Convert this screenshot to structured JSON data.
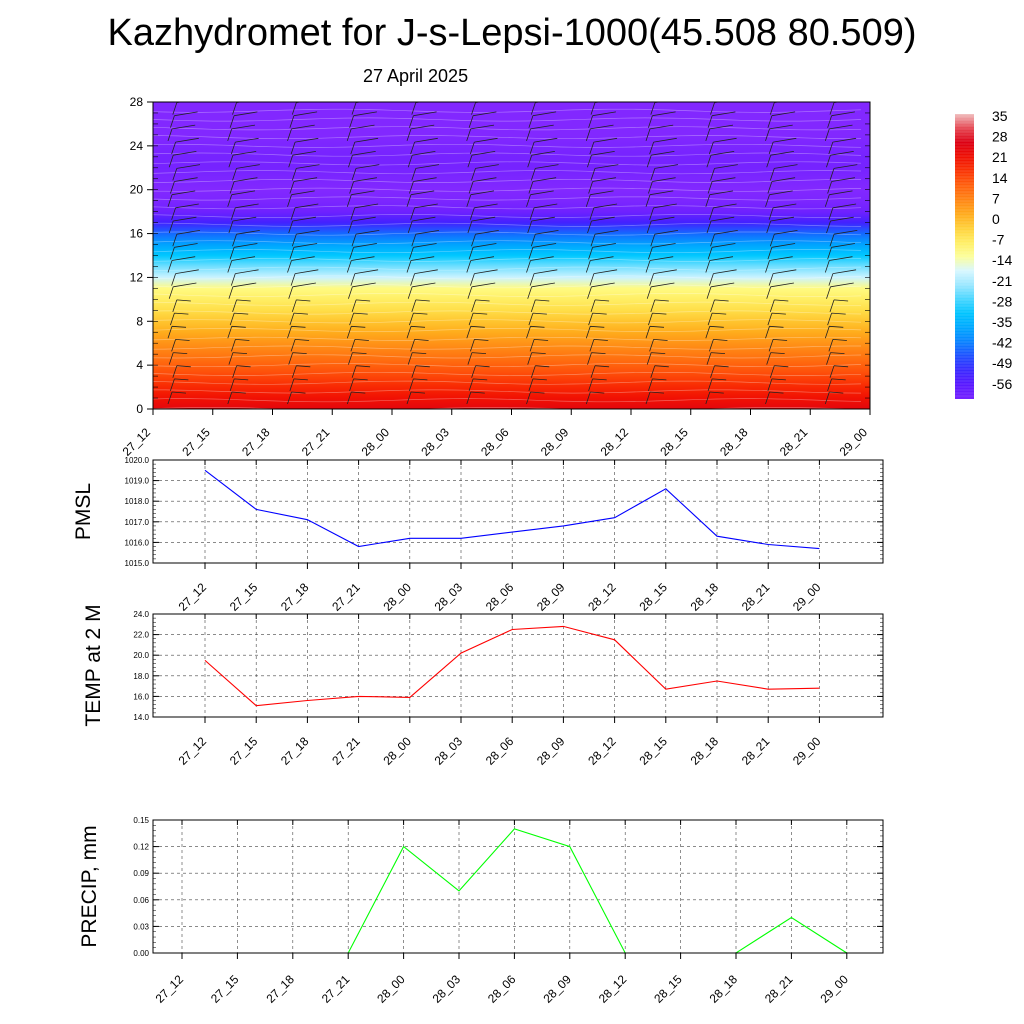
{
  "title": "Kazhydromet for J-s-Lepsi-1000(45.508 80.509)",
  "subtitle": "27 April 2025",
  "time_labels": [
    "27_12",
    "27_15",
    "27_18",
    "27_21",
    "28_00",
    "28_03",
    "28_06",
    "28_09",
    "28_12",
    "28_15",
    "28_18",
    "28_21",
    "29_00"
  ],
  "colorbar": {
    "labels": [
      "35",
      "28",
      "21",
      "14",
      "7",
      "0",
      "-7",
      "-14",
      "-21",
      "-28",
      "-35",
      "-42",
      "-49",
      "-56"
    ]
  },
  "chart_data": [
    {
      "type": "heatmap",
      "yticks": [
        "0",
        "4",
        "8",
        "12",
        "16",
        "20",
        "24",
        "28"
      ],
      "ylim": [
        0,
        28
      ],
      "xcategories": [
        "27_12",
        "27_15",
        "27_18",
        "27_21",
        "28_00",
        "28_03",
        "28_06",
        "28_09",
        "28_12",
        "28_15",
        "28_18",
        "28_21",
        "29_00"
      ],
      "levels": [
        0,
        1,
        2,
        3,
        4,
        5,
        6,
        7,
        8,
        9,
        10,
        11,
        12,
        13,
        14,
        15,
        16,
        17,
        18,
        19,
        20,
        21,
        22,
        23,
        24,
        25,
        26,
        27,
        28
      ],
      "temperature_by_level": [
        24,
        21,
        18,
        15,
        12,
        9,
        6,
        3,
        0,
        -3,
        -6,
        -9,
        -16,
        -22,
        -28,
        -34,
        -40,
        -48,
        -55,
        -57,
        -58,
        -57,
        -56,
        -56,
        -57,
        -58,
        -58,
        -58,
        -58
      ],
      "colorbar_range": [
        -56,
        35
      ]
    },
    {
      "type": "line",
      "ylabel": "PMSL",
      "categories": [
        "27_12",
        "27_15",
        "27_18",
        "27_21",
        "28_00",
        "28_03",
        "28_06",
        "28_09",
        "28_12",
        "28_15",
        "28_18",
        "28_21",
        "29_00"
      ],
      "values": [
        1019.5,
        1017.6,
        1017.1,
        1015.8,
        1016.2,
        1016.2,
        1016.5,
        1016.8,
        1017.2,
        1018.6,
        1016.3,
        1015.9,
        1015.7
      ],
      "ylim": [
        1015.0,
        1020.0
      ],
      "yticks": [
        "1015.0",
        "1016.0",
        "1017.0",
        "1018.0",
        "1019.0",
        "1020.0"
      ],
      "color": "#0000ff"
    },
    {
      "type": "line",
      "ylabel": "TEMP at 2 M",
      "categories": [
        "27_12",
        "27_15",
        "27_18",
        "27_21",
        "28_00",
        "28_03",
        "28_06",
        "28_09",
        "28_12",
        "28_15",
        "28_18",
        "28_21",
        "29_00"
      ],
      "values": [
        19.5,
        15.1,
        15.6,
        16.0,
        15.9,
        20.2,
        22.5,
        22.8,
        21.5,
        16.7,
        17.5,
        16.7,
        16.8
      ],
      "ylim": [
        14.0,
        24.0
      ],
      "yticks": [
        "14.0",
        "16.0",
        "18.0",
        "20.0",
        "22.0",
        "24.0"
      ],
      "color": "#ff0000"
    },
    {
      "type": "bar",
      "ylabel": "PRECIP, mm",
      "categories": [
        "27_12",
        "27_15",
        "27_18",
        "27_21",
        "28_00",
        "28_03",
        "28_06",
        "28_09",
        "28_12",
        "28_15",
        "28_18",
        "28_21",
        "29_00"
      ],
      "values": [
        0,
        0,
        0,
        0,
        0.12,
        0.07,
        0.14,
        0.12,
        0,
        0,
        0,
        0.04,
        0
      ],
      "ylim": [
        0,
        0.15
      ],
      "yticks": [
        "0.00",
        "0.03",
        "0.06",
        "0.09",
        "0.12",
        "0.15"
      ],
      "color": "#00ff00"
    }
  ]
}
